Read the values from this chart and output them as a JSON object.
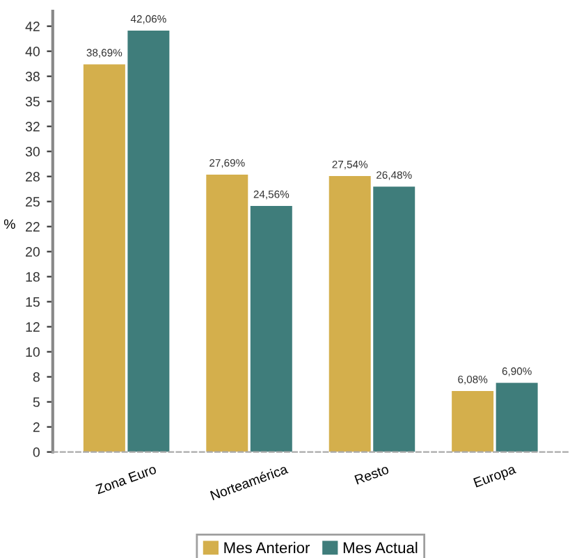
{
  "chart_data": {
    "type": "bar",
    "ylabel": "%",
    "categories": [
      "Zona Euro",
      "Norteamérica",
      "Resto",
      "Europa"
    ],
    "series": [
      {
        "name": "Mes Anterior",
        "color": "#d4af4c",
        "values": [
          38.69,
          27.69,
          27.54,
          6.08
        ],
        "value_labels": [
          "38,69%",
          "27,69%",
          "27,54%",
          "6,08%"
        ]
      },
      {
        "name": "Mes Actual",
        "color": "#3f7d7b",
        "values": [
          42.06,
          24.56,
          26.48,
          6.9
        ],
        "value_labels": [
          "42,06%",
          "24,56%",
          "26,48%",
          "6,90%"
        ]
      }
    ],
    "ylim": [
      0,
      44
    ],
    "yticks": [
      0,
      {
        "value": 2.5,
        "label": "2"
      },
      5,
      {
        "value": 7.5,
        "label": "8"
      },
      10,
      {
        "value": 12.5,
        "label": "12"
      },
      15,
      {
        "value": 17.5,
        "label": "18"
      },
      20,
      {
        "value": 22.5,
        "label": "22"
      },
      25,
      {
        "value": 27.5,
        "label": "28"
      },
      30,
      {
        "value": 32.5,
        "label": "32"
      },
      35,
      {
        "value": 37.5,
        "label": "38"
      },
      40,
      {
        "value": 42.5,
        "label": "42"
      }
    ],
    "grid": false,
    "legend": "bottom"
  }
}
